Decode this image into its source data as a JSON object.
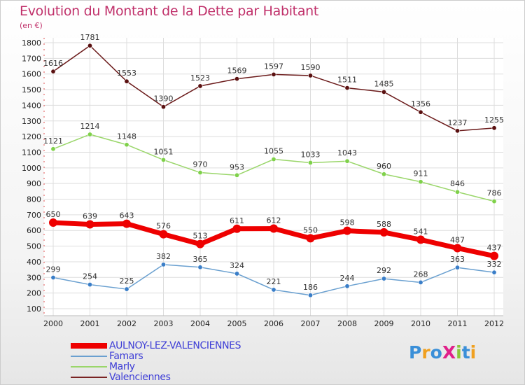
{
  "chart_data": {
    "type": "line",
    "title": "Evolution du Montant de la Dette par Habitant",
    "subtitle": "(en €)",
    "categories": [
      "2000",
      "2001",
      "2002",
      "2003",
      "2004",
      "2005",
      "2006",
      "2007",
      "2008",
      "2009",
      "2010",
      "2011",
      "2012"
    ],
    "ylim": [
      100,
      1800
    ],
    "yticks": [
      100,
      200,
      300,
      400,
      500,
      600,
      700,
      800,
      900,
      1000,
      1100,
      1200,
      1300,
      1400,
      1500,
      1600,
      1700,
      1800
    ],
    "grid": true,
    "legend_position": "bottom-left",
    "series": [
      {
        "name": "Valenciennes",
        "color": "#6b1a1a",
        "values": [
          1616,
          1781,
          1553,
          1390,
          1523,
          1569,
          1597,
          1590,
          1511,
          1485,
          1356,
          1237,
          1255
        ]
      },
      {
        "name": "Marly",
        "color": "#7fd14a",
        "values": [
          1121,
          1214,
          1148,
          1051,
          970,
          953,
          1055,
          1033,
          1043,
          960,
          911,
          846,
          786
        ]
      },
      {
        "name": "AULNOY-LEZ-VALENCIENNES",
        "color": "#ee0000",
        "values": [
          650,
          639,
          643,
          576,
          513,
          611,
          612,
          550,
          598,
          588,
          541,
          487,
          437
        ]
      },
      {
        "name": "Famars",
        "color": "#4d94d1",
        "values": [
          299,
          254,
          225,
          382,
          365,
          324,
          221,
          186,
          244,
          292,
          268,
          363,
          332
        ]
      }
    ]
  },
  "legend": [
    {
      "label": "AULNOY-LEZ-VALENCIENNES",
      "color": "#ee0000"
    },
    {
      "label": "Famars",
      "color": "#6aa0d0"
    },
    {
      "label": "Marly",
      "color": "#9ad66a"
    },
    {
      "label": "Valenciennes",
      "color": "#7a2424"
    }
  ],
  "logo": {
    "text": "ProXiti"
  }
}
